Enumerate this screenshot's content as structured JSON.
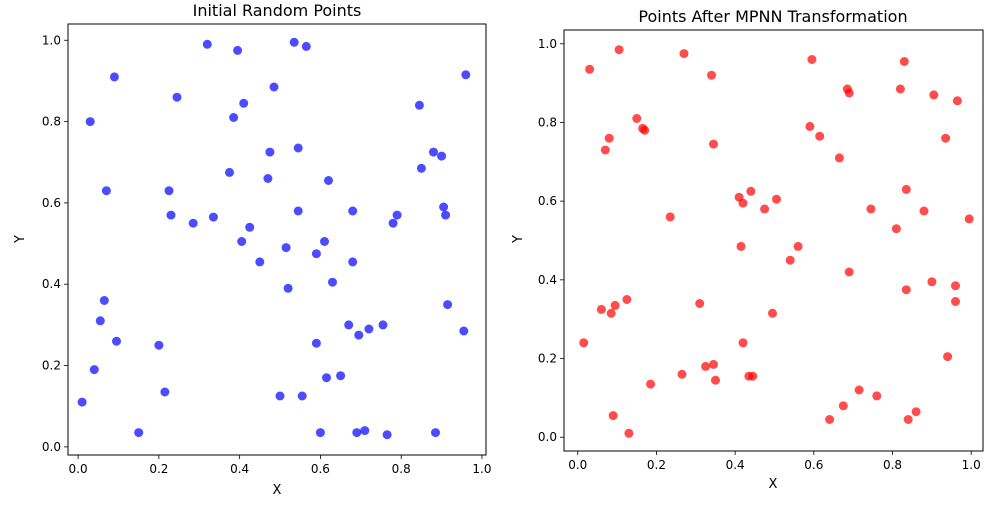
{
  "figure": {
    "background": "#ffffff"
  },
  "chart_data": [
    {
      "type": "scatter",
      "title": "Initial Random Points",
      "xlabel": "X",
      "ylabel": "Y",
      "xlim": [
        -0.025,
        1.01
      ],
      "ylim": [
        -0.02,
        1.04
      ],
      "xticks": [
        "0.0",
        "0.2",
        "0.4",
        "0.6",
        "0.8",
        "1.0"
      ],
      "yticks": [
        "0.0",
        "0.2",
        "0.4",
        "0.6",
        "0.8",
        "1.0"
      ],
      "grid": false,
      "color": "#0000ff",
      "alpha": 0.7,
      "points": [
        [
          0.01,
          0.11
        ],
        [
          0.03,
          0.8
        ],
        [
          0.04,
          0.19
        ],
        [
          0.055,
          0.31
        ],
        [
          0.065,
          0.36
        ],
        [
          0.07,
          0.63
        ],
        [
          0.09,
          0.91
        ],
        [
          0.095,
          0.26
        ],
        [
          0.15,
          0.035
        ],
        [
          0.2,
          0.25
        ],
        [
          0.215,
          0.135
        ],
        [
          0.225,
          0.63
        ],
        [
          0.23,
          0.57
        ],
        [
          0.245,
          0.86
        ],
        [
          0.285,
          0.55
        ],
        [
          0.32,
          0.99
        ],
        [
          0.335,
          0.565
        ],
        [
          0.375,
          0.675
        ],
        [
          0.385,
          0.81
        ],
        [
          0.395,
          0.975
        ],
        [
          0.405,
          0.505
        ],
        [
          0.41,
          0.845
        ],
        [
          0.425,
          0.54
        ],
        [
          0.45,
          0.455
        ],
        [
          0.47,
          0.66
        ],
        [
          0.475,
          0.725
        ],
        [
          0.485,
          0.885
        ],
        [
          0.5,
          0.125
        ],
        [
          0.515,
          0.49
        ],
        [
          0.52,
          0.39
        ],
        [
          0.535,
          0.995
        ],
        [
          0.545,
          0.58
        ],
        [
          0.545,
          0.735
        ],
        [
          0.555,
          0.125
        ],
        [
          0.565,
          0.985
        ],
        [
          0.59,
          0.475
        ],
        [
          0.59,
          0.255
        ],
        [
          0.6,
          0.035
        ],
        [
          0.61,
          0.505
        ],
        [
          0.615,
          0.17
        ],
        [
          0.62,
          0.655
        ],
        [
          0.63,
          0.405
        ],
        [
          0.65,
          0.175
        ],
        [
          0.67,
          0.3
        ],
        [
          0.68,
          0.58
        ],
        [
          0.68,
          0.455
        ],
        [
          0.69,
          0.035
        ],
        [
          0.695,
          0.275
        ],
        [
          0.71,
          0.04
        ],
        [
          0.72,
          0.29
        ],
        [
          0.755,
          0.3
        ],
        [
          0.765,
          0.03
        ],
        [
          0.78,
          0.55
        ],
        [
          0.79,
          0.57
        ],
        [
          0.845,
          0.84
        ],
        [
          0.85,
          0.685
        ],
        [
          0.88,
          0.725
        ],
        [
          0.885,
          0.035
        ],
        [
          0.9,
          0.715
        ],
        [
          0.905,
          0.59
        ],
        [
          0.91,
          0.57
        ],
        [
          0.915,
          0.35
        ],
        [
          0.955,
          0.285
        ],
        [
          0.96,
          0.915
        ]
      ]
    },
    {
      "type": "scatter",
      "title": "Points After MPNN Transformation",
      "xlabel": "X",
      "ylabel": "Y",
      "xlim": [
        -0.035,
        1.03
      ],
      "ylim": [
        -0.035,
        1.035
      ],
      "xticks": [
        "0.0",
        "0.2",
        "0.4",
        "0.6",
        "0.8",
        "1.0"
      ],
      "yticks": [
        "0.0",
        "0.2",
        "0.4",
        "0.6",
        "0.8",
        "1.0"
      ],
      "grid": false,
      "color": "#ff0000",
      "alpha": 0.7,
      "points": [
        [
          0.015,
          0.24
        ],
        [
          0.03,
          0.935
        ],
        [
          0.06,
          0.325
        ],
        [
          0.07,
          0.73
        ],
        [
          0.08,
          0.76
        ],
        [
          0.085,
          0.315
        ],
        [
          0.09,
          0.055
        ],
        [
          0.095,
          0.335
        ],
        [
          0.105,
          0.985
        ],
        [
          0.125,
          0.35
        ],
        [
          0.13,
          0.01
        ],
        [
          0.15,
          0.81
        ],
        [
          0.165,
          0.785
        ],
        [
          0.17,
          0.78
        ],
        [
          0.185,
          0.135
        ],
        [
          0.235,
          0.56
        ],
        [
          0.265,
          0.16
        ],
        [
          0.27,
          0.975
        ],
        [
          0.31,
          0.34
        ],
        [
          0.325,
          0.18
        ],
        [
          0.34,
          0.92
        ],
        [
          0.345,
          0.185
        ],
        [
          0.345,
          0.745
        ],
        [
          0.35,
          0.145
        ],
        [
          0.41,
          0.61
        ],
        [
          0.415,
          0.485
        ],
        [
          0.42,
          0.24
        ],
        [
          0.42,
          0.595
        ],
        [
          0.435,
          0.155
        ],
        [
          0.44,
          0.625
        ],
        [
          0.445,
          0.155
        ],
        [
          0.475,
          0.58
        ],
        [
          0.495,
          0.315
        ],
        [
          0.505,
          0.605
        ],
        [
          0.54,
          0.45
        ],
        [
          0.56,
          0.485
        ],
        [
          0.59,
          0.79
        ],
        [
          0.595,
          0.96
        ],
        [
          0.615,
          0.765
        ],
        [
          0.64,
          0.045
        ],
        [
          0.665,
          0.71
        ],
        [
          0.675,
          0.08
        ],
        [
          0.685,
          0.885
        ],
        [
          0.69,
          0.875
        ],
        [
          0.69,
          0.42
        ],
        [
          0.715,
          0.12
        ],
        [
          0.745,
          0.58
        ],
        [
          0.76,
          0.105
        ],
        [
          0.81,
          0.53
        ],
        [
          0.82,
          0.885
        ],
        [
          0.83,
          0.955
        ],
        [
          0.835,
          0.63
        ],
        [
          0.835,
          0.375
        ],
        [
          0.84,
          0.045
        ],
        [
          0.86,
          0.065
        ],
        [
          0.88,
          0.575
        ],
        [
          0.9,
          0.395
        ],
        [
          0.905,
          0.87
        ],
        [
          0.935,
          0.76
        ],
        [
          0.94,
          0.205
        ],
        [
          0.96,
          0.385
        ],
        [
          0.96,
          0.345
        ],
        [
          0.965,
          0.855
        ],
        [
          0.995,
          0.555
        ]
      ]
    }
  ]
}
